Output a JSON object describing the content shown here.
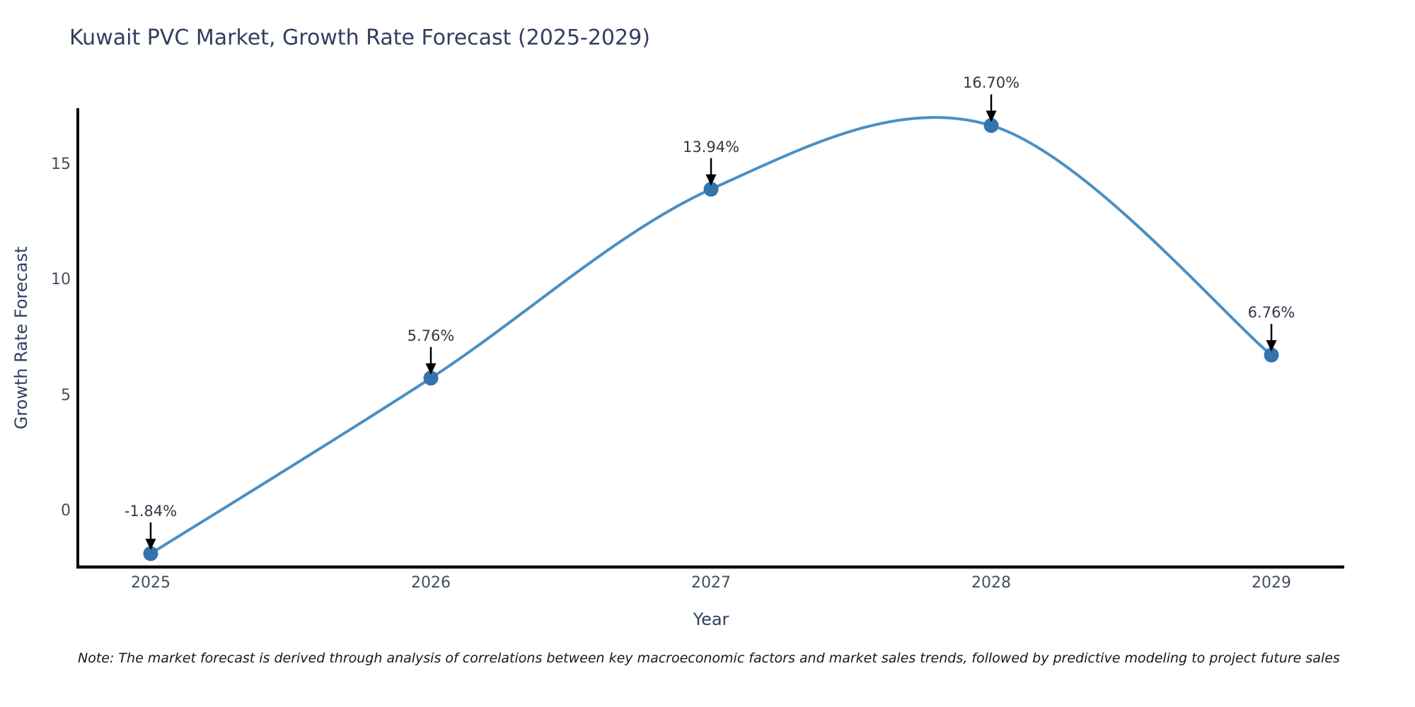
{
  "title": "Kuwait PVC Market, Growth Rate Forecast (2025-2029)",
  "note": "Note: The market forecast is derived through analysis of correlations between key macroeconomic factors and market sales trends, followed by predictive modeling to project future sales",
  "chart_data": {
    "type": "line",
    "title": "Kuwait PVC Market, Growth Rate Forecast (2025-2029)",
    "xlabel": "Year",
    "ylabel": "Growth Rate Forecast",
    "categories": [
      "2025",
      "2026",
      "2027",
      "2028",
      "2029"
    ],
    "values": [
      -1.84,
      5.76,
      13.94,
      16.7,
      6.76
    ],
    "point_labels": [
      "-1.84%",
      "5.76%",
      "13.94%",
      "16.70%",
      "6.76%"
    ],
    "y_ticks": [
      0,
      5,
      10,
      15
    ],
    "ylim": [
      -2.42,
      17.45
    ],
    "xlim": [
      2024.74,
      2029.26
    ],
    "x_values": [
      2025,
      2026,
      2027,
      2028,
      2029
    ],
    "line_shape": "spline",
    "grid": false,
    "legend": "none",
    "markers": true,
    "annotations_have_arrows": true,
    "colors": {
      "line": "#4a8fc4",
      "marker": "#3573ad",
      "arrow": "#000000",
      "axis_line": "#0a0a0a",
      "title_text": "#31405f",
      "tick_text": "#44505d",
      "annotation_text": "#2f3845"
    }
  }
}
